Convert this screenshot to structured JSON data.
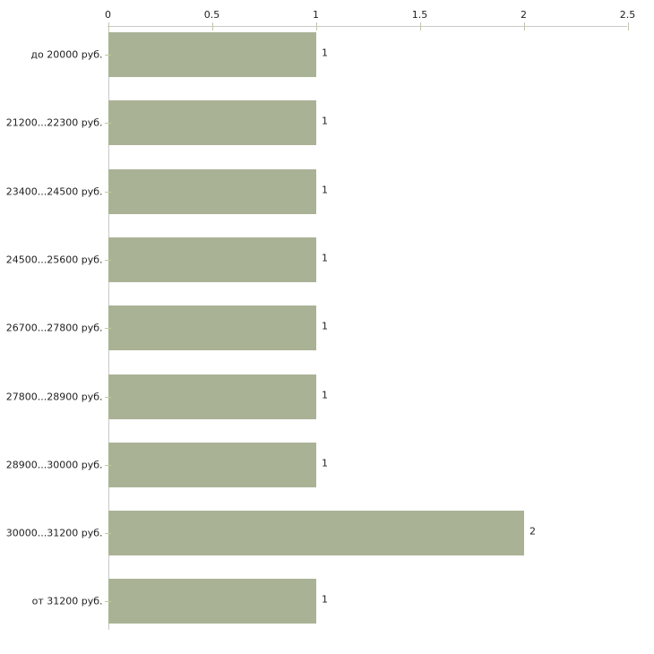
{
  "chart_data": {
    "type": "bar",
    "orientation": "horizontal",
    "title": "",
    "xlabel": "",
    "ylabel": "",
    "categories": [
      "до 20000 руб.",
      "21200...22300 руб.",
      "23400...24500 руб.",
      "24500...25600 руб.",
      "26700...27800 руб.",
      "27800...28900 руб.",
      "28900...30000 руб.",
      "30000...31200 руб.",
      "от 31200 руб."
    ],
    "values": [
      1,
      1,
      1,
      1,
      1,
      1,
      1,
      2,
      1
    ],
    "value_labels": [
      "1",
      "1",
      "1",
      "1",
      "1",
      "1",
      "1",
      "2",
      "1"
    ],
    "xlim": [
      0,
      2.5
    ],
    "xticks": [
      0,
      0.5,
      1,
      1.5,
      2,
      2.5
    ],
    "xtick_labels": [
      "0",
      "0.5",
      "1",
      "1.5",
      "2",
      "2.5"
    ],
    "x_axis_position": "top",
    "grid": false,
    "legend": "none",
    "colors": {
      "bar_fill": "#aab296",
      "axis_line": "#c9c9c5",
      "tick_mark": "#c6c8a0",
      "text": "#1f1f1f",
      "background": "#ffffff"
    }
  }
}
